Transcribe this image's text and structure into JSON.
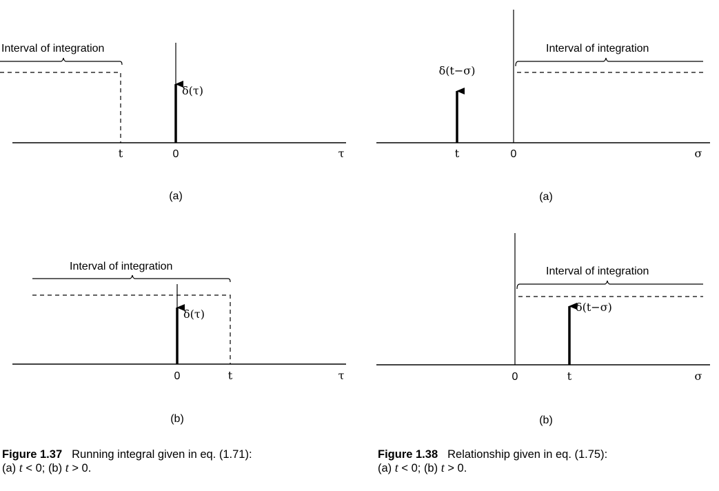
{
  "figure_137": {
    "panel_a": {
      "interval_label": "Interval of integration",
      "impulse_label": "δ(τ)",
      "tick_t": "t",
      "tick_0": "0",
      "axis_label": "τ",
      "panel_label": "(a)"
    },
    "panel_b": {
      "interval_label": "Interval of integration",
      "impulse_label": "δ(τ)",
      "tick_0": "0",
      "tick_t": "t",
      "axis_label": "τ",
      "panel_label": "(b)"
    },
    "caption": {
      "number": "Figure 1.37",
      "text_line1": "Running integral given in eq. (1.71):",
      "line2_a": "(a)",
      "t1": "t",
      "cond1": "< 0; (b)",
      "t2": "t",
      "cond2": "> 0."
    }
  },
  "figure_138": {
    "panel_a": {
      "interval_label": "Interval of integration",
      "impulse_label": "δ(t−σ)",
      "tick_t": "t",
      "tick_0": "0",
      "axis_label": "σ",
      "panel_label": "(a)"
    },
    "panel_b": {
      "interval_label": "Interval of integration",
      "impulse_label": "δ(t−σ)",
      "tick_0": "0",
      "tick_t": "t",
      "axis_label": "σ",
      "panel_label": "(b)"
    },
    "caption": {
      "number": "Figure 1.38",
      "text_line1": "Relationship given in eq. (1.75):",
      "line2_a": "(a)",
      "t1": "t",
      "cond1": "< 0; (b)",
      "t2": "t",
      "cond2": "> 0."
    }
  }
}
